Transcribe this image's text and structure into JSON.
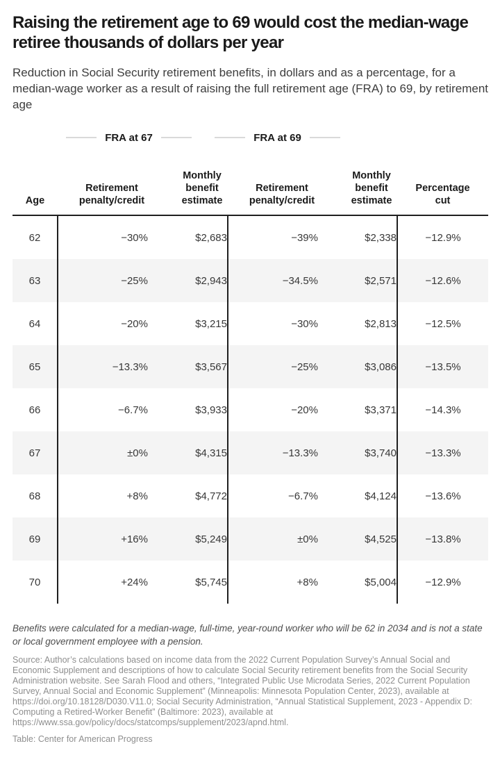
{
  "title": "Raising the retirement age to 69 would cost the median-wage retiree thousands of dollars per year",
  "subtitle": "Reduction in Social Security retirement benefits, in dollars and as a percentage, for a median-wage worker as a result of raising the full retirement age (FRA) to 69, by retirement age",
  "chart_data": {
    "type": "table",
    "column_groups": [
      {
        "label": "FRA at 67",
        "columns": [
          1,
          2
        ]
      },
      {
        "label": "FRA at 69",
        "columns": [
          3,
          4
        ]
      }
    ],
    "columns": [
      "Age",
      "Retirement penalty/credit",
      "Monthly benefit estimate",
      "Retirement penalty/credit",
      "Monthly benefit estimate",
      "Percentage cut"
    ],
    "rows": [
      [
        "62",
        "−30%",
        "$2,683",
        "−39%",
        "$2,338",
        "−12.9%"
      ],
      [
        "63",
        "−25%",
        "$2,943",
        "−34.5%",
        "$2,571",
        "−12.6%"
      ],
      [
        "64",
        "−20%",
        "$3,215",
        "−30%",
        "$2,813",
        "−12.5%"
      ],
      [
        "65",
        "−13.3%",
        "$3,567",
        "−25%",
        "$3,086",
        "−13.5%"
      ],
      [
        "66",
        "−6.7%",
        "$3,933",
        "−20%",
        "$3,371",
        "−14.3%"
      ],
      [
        "67",
        "±0%",
        "$4,315",
        "−13.3%",
        "$3,740",
        "−13.3%"
      ],
      [
        "68",
        "+8%",
        "$4,772",
        "−6.7%",
        "$4,124",
        "−13.6%"
      ],
      [
        "69",
        "+16%",
        "$5,249",
        "±0%",
        "$4,525",
        "−13.8%"
      ],
      [
        "70",
        "+24%",
        "$5,745",
        "+8%",
        "$5,004",
        "−12.9%"
      ]
    ]
  },
  "note": "Benefits were calculated for a median-wage, full-time, year-round worker who will be 62 in 2034 and is not a state or local government employee with a pension.",
  "source": "Source: Author’s calculations based on income data from the 2022 Current Population Survey’s Annual Social and Economic Supplement and descriptions of how to calculate Social Security retirement benefits from the Social Security Administration website. See Sarah Flood and others, “Integrated Public Use Microdata Series, 2022 Current Population Survey, Annual Social and Economic Supplement” (Minneapolis: Minnesota Population Center, 2023), available at https://doi.org/10.18128/D030.V11.0; Social Security Administration, “Annual Statistical Supplement, 2023 - Appendix D: Computing a Retired-Worker Benefit” (Baltimore: 2023), available at https://www.ssa.gov/policy/docs/statcomps/supplement/2023/apnd.html.",
  "credit": "Table: Center for American Progress",
  "colors": {
    "title_text": "#1a1a1a",
    "body_text": "#383838",
    "table_rule": "#1f1f1f",
    "zebra_row": "#f4f4f4",
    "group_rule": "#d9d9d9",
    "source_text": "#8e8e8e"
  }
}
